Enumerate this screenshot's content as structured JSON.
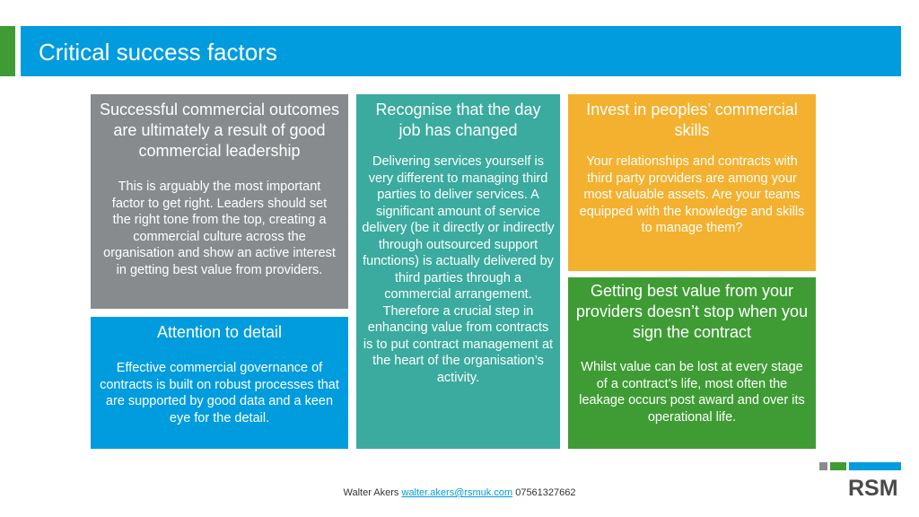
{
  "slide": {
    "title": "Critical success factors"
  },
  "cards": {
    "leadership": {
      "heading": "Successful commercial outcomes are ultimately a result of good commercial leadership",
      "body": "This is arguably the most important factor to get right. Leaders should set the right tone from the top, creating a commercial culture across the organisation and show an active interest in getting best value from providers."
    },
    "detail": {
      "heading": "Attention to detail",
      "body": "Effective commercial governance of contracts is built on robust processes that are supported by good data and a keen eye for the detail."
    },
    "job_changed": {
      "heading": "Recognise that the day job has changed",
      "body": "Delivering services yourself is very different to managing third parties to deliver services. A significant amount of service delivery (be it directly or indirectly through outsourced support functions) is actually delivered by third parties through a commercial arrangement. Therefore a crucial step in enhancing value from contracts is to put contract management at the heart of the organisation’s activity."
    },
    "skills": {
      "heading": "Invest in peoples’ commercial skills",
      "body": "Your relationships and contracts with third party providers are among your most valuable assets. Are your teams equipped with the knowledge and skills to manage them?"
    },
    "value": {
      "heading": "Getting best value from your providers doesn’t stop when you sign the contract",
      "body": "Whilst value can be lost at every stage of a contract’s life, most often the leakage occurs post award and over its operational life."
    }
  },
  "footer": {
    "name": "Walter Akers",
    "email": "walter.akers@rsmuk.com",
    "phone": "07561327662"
  },
  "logo": {
    "text": "RSM"
  },
  "colors": {
    "blue": "#009cde",
    "green": "#3f9c35",
    "grey": "#888b8d",
    "teal": "#3aab9e",
    "amber": "#f3b12f"
  }
}
